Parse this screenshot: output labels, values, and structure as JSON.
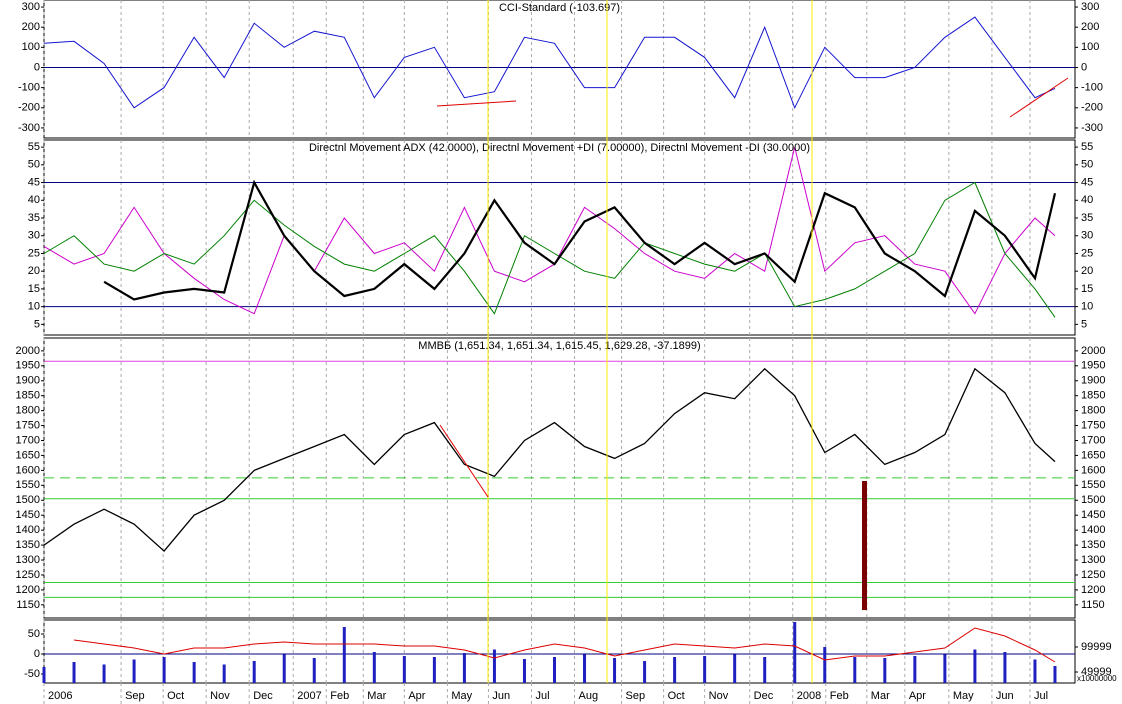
{
  "chart_data": [
    {
      "type": "line",
      "title": "CCI-Standard (-103.697)",
      "ylim": [
        -350,
        335
      ],
      "yticks": [
        -300,
        -200,
        -100,
        0,
        100,
        200,
        300
      ],
      "hlines": [
        {
          "value": 0,
          "color": "#000080"
        }
      ],
      "series": [
        {
          "color": "#1515d0",
          "width": 1,
          "values": [
            120,
            130,
            20,
            -200,
            -100,
            150,
            -50,
            220,
            100,
            180,
            150,
            -150,
            50,
            100,
            -150,
            -120,
            150,
            120,
            -100,
            -100,
            150,
            150,
            50,
            -150,
            200,
            -200,
            100,
            -50,
            -50,
            0,
            150,
            250,
            50,
            -150,
            -103.697
          ]
        }
      ]
    },
    {
      "type": "line",
      "title": "Directnl Movement ADX (42.0000), Directnl Movement +DI (7.00000), Directnl Movement -DI (30.0000)",
      "ylim": [
        2,
        57
      ],
      "yticks": [
        5,
        10,
        15,
        20,
        25,
        30,
        35,
        40,
        45,
        50,
        55
      ],
      "hlines": [
        {
          "value": 45,
          "color": "#000080"
        },
        {
          "value": 10,
          "color": "#000080"
        }
      ],
      "series": [
        {
          "color": "#cc00cc",
          "width": 1,
          "values": [
            27,
            22,
            25,
            38,
            25,
            18,
            12,
            8,
            30,
            20,
            35,
            25,
            28,
            20,
            38,
            20,
            17,
            22,
            38,
            32,
            25,
            20,
            18,
            25,
            20,
            55,
            20,
            28,
            30,
            22,
            20,
            8,
            25,
            35,
            30
          ]
        },
        {
          "color": "#008000",
          "width": 1,
          "values": [
            25,
            30,
            22,
            20,
            25,
            22,
            30,
            40,
            33,
            27,
            22,
            20,
            25,
            30,
            20,
            8,
            30,
            25,
            20,
            18,
            28,
            25,
            22,
            20,
            25,
            10,
            12,
            15,
            20,
            25,
            40,
            45,
            25,
            15,
            7
          ]
        },
        {
          "color": "#000000",
          "width": 2.2,
          "values": [
            null,
            null,
            17,
            12,
            14,
            15,
            14,
            45,
            30,
            20,
            13,
            15,
            22,
            15,
            25,
            40,
            28,
            22,
            34,
            38,
            28,
            22,
            28,
            22,
            25,
            17,
            42,
            38,
            25,
            20,
            13,
            37,
            30,
            18,
            42
          ]
        }
      ]
    },
    {
      "type": "line",
      "title": "ММВБ (1,651.34, 1,651.34, 1,615.45, 1,629.28, -37.1899)",
      "ylim": [
        1106,
        2043
      ],
      "yticks": [
        1150,
        1200,
        1250,
        1300,
        1350,
        1400,
        1450,
        1500,
        1550,
        1600,
        1650,
        1700,
        1750,
        1800,
        1850,
        1900,
        1950,
        2000
      ],
      "hlines": [
        {
          "value": 1965,
          "color": "#e040e0"
        },
        {
          "value": 1575,
          "color": "#33cc33",
          "dashed": true
        },
        {
          "value": 1505,
          "color": "#33cc33"
        },
        {
          "value": 1225,
          "color": "#33cc33"
        },
        {
          "value": 1175,
          "color": "#33cc33"
        }
      ],
      "series": [
        {
          "color": "#000000",
          "width": 1.3,
          "values": [
            1350,
            1420,
            1470,
            1420,
            1330,
            1450,
            1500,
            1600,
            1640,
            1680,
            1720,
            1620,
            1720,
            1760,
            1620,
            1580,
            1700,
            1760,
            1680,
            1640,
            1690,
            1790,
            1860,
            1840,
            1940,
            1850,
            1660,
            1720,
            1620,
            1660,
            1720,
            1940,
            1860,
            1690,
            1629.28
          ]
        }
      ]
    },
    {
      "type": "combo",
      "x": [
        0,
        3,
        6,
        9,
        12,
        15,
        18,
        21,
        24,
        27,
        30,
        33,
        36,
        39,
        42,
        45,
        48,
        51,
        54,
        57,
        60,
        63,
        66,
        69,
        72,
        75,
        78,
        81,
        84,
        87,
        90,
        93,
        96,
        99,
        101
      ],
      "xlim": [
        0,
        103
      ],
      "xticks": [
        {
          "value": 0,
          "label": "2006"
        },
        {
          "value": 7.7,
          "label": "Sep"
        },
        {
          "value": 11.9,
          "label": "Oct"
        },
        {
          "value": 16.2,
          "label": "Nov"
        },
        {
          "value": 20.5,
          "label": "Dec"
        },
        {
          "value": 24.9,
          "label": "2007"
        },
        {
          "value": 28.2,
          "label": "Feb"
        },
        {
          "value": 31.9,
          "label": "Mar"
        },
        {
          "value": 36,
          "label": "Apr"
        },
        {
          "value": 40.3,
          "label": "May"
        },
        {
          "value": 44.4,
          "label": "Jun"
        },
        {
          "value": 48.7,
          "label": "Jul"
        },
        {
          "value": 53,
          "label": "Aug"
        },
        {
          "value": 57.7,
          "label": "Sep"
        },
        {
          "value": 61.9,
          "label": "Oct"
        },
        {
          "value": 66,
          "label": "Nov"
        },
        {
          "value": 70.5,
          "label": "Dec"
        },
        {
          "value": 74.8,
          "label": "2008"
        },
        {
          "value": 78.1,
          "label": "Feb"
        },
        {
          "value": 82.2,
          "label": "Mar"
        },
        {
          "value": 86,
          "label": "Apr"
        },
        {
          "value": 90.4,
          "label": "May"
        },
        {
          "value": 94.7,
          "label": "Jun"
        },
        {
          "value": 98.5,
          "label": "Jul"
        }
      ],
      "ylim": [
        -72.5,
        85
      ],
      "yticks": [
        -50,
        0,
        50
      ],
      "y2lim": [
        28000,
        154000
      ],
      "y2ticks": [
        49999,
        99999
      ],
      "y2_label": "x10000000",
      "hlines": [
        {
          "value": 0,
          "color": "#000080"
        }
      ],
      "series": [
        {
          "type": "bar",
          "axis": "y2",
          "color": "#2020c0",
          "values": [
            60000,
            70000,
            65000,
            75000,
            80000,
            70000,
            65000,
            72000,
            85000,
            78000,
            140000,
            90000,
            82000,
            80000,
            88000,
            95000,
            76000,
            80000,
            85000,
            78000,
            72000,
            80000,
            82000,
            85000,
            80000,
            150000,
            100000,
            80000,
            78000,
            82000,
            85000,
            95000,
            90000,
            75000,
            62000
          ]
        },
        {
          "color": "#dd0000",
          "width": 1,
          "values": [
            null,
            35,
            25,
            15,
            0,
            15,
            15,
            25,
            30,
            25,
            25,
            25,
            20,
            20,
            10,
            -10,
            10,
            25,
            15,
            -5,
            10,
            25,
            20,
            15,
            25,
            20,
            -15,
            -5,
            -5,
            5,
            15,
            65,
            45,
            10,
            -20
          ]
        }
      ]
    }
  ]
}
